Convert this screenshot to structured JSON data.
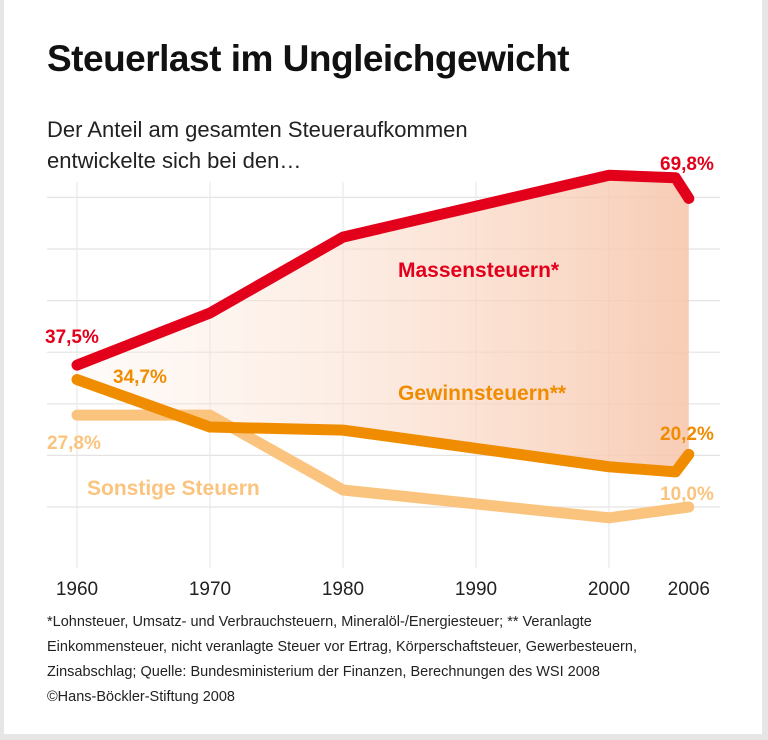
{
  "title": "Steuerlast im Ungleichgewicht",
  "subtitle_lines": [
    "Der Anteil am gesamten Steueraufkommen",
    "entwickelte sich bei den…"
  ],
  "footnote_lines": [
    "*Lohnsteuer, Umsatz- und Verbrauchsteuern, Mineralöl-/Energiesteuer; ** Veranlagte",
    "Einkommensteuer, nicht veranlagte Steuer vor Ertrag, Körperschaftsteuer, Gewerbesteuern,",
    "Zinsabschlag; Quelle: Bundesministerium der Finanzen, Berechnungen des WSI 2008",
    "©Hans-Böckler-Stiftung 2008"
  ],
  "chart_data": {
    "type": "line",
    "x_ticks": [
      "1960",
      "1970",
      "1980",
      "1990",
      "2000",
      "2006"
    ],
    "ylim": [
      0,
      75
    ],
    "grid": true,
    "y_unit": "%",
    "series": [
      {
        "name": "Massensteuern*",
        "color": "#e3001b",
        "x": [
          1960,
          1970,
          1980,
          2000,
          2005,
          2006
        ],
        "y": [
          37.5,
          47.6,
          62.3,
          74.3,
          73.8,
          69.8
        ],
        "labels": [
          {
            "year": 1960,
            "text": "37,5%"
          },
          {
            "year": 2006,
            "text": "69,8%"
          }
        ]
      },
      {
        "name": "Gewinnsteuern**",
        "color": "#f08c00",
        "x": [
          1960,
          1970,
          1980,
          2000,
          2005,
          2006
        ],
        "y": [
          34.7,
          25.5,
          24.9,
          17.8,
          16.8,
          20.2
        ],
        "labels": [
          {
            "year": 1960,
            "text": "34,7%"
          },
          {
            "year": 2006,
            "text": "20,2%"
          }
        ]
      },
      {
        "name": "Sonstige Steuern",
        "color": "#fbc47e",
        "x": [
          1960,
          1970,
          1980,
          2000,
          2006
        ],
        "y": [
          27.8,
          27.8,
          13.3,
          7.9,
          10.0
        ],
        "labels": [
          {
            "year": 1960,
            "text": "27,8%"
          },
          {
            "year": 2006,
            "text": "10,0%"
          }
        ]
      }
    ],
    "fill_between": {
      "from": "Massensteuern*",
      "to": "Gewinnsteuern**",
      "color": "#f5b89a"
    }
  }
}
